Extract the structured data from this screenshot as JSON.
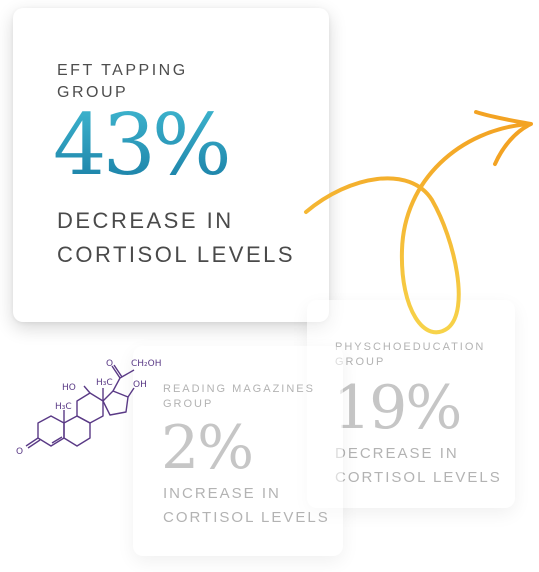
{
  "main_card": {
    "group": "EFT TAPPING GROUP",
    "value": "43%",
    "desc_line1": "DECREASE IN",
    "desc_line2": "CORTISOL LEVELS"
  },
  "psycho_card": {
    "group": "PHYSCHOEDUCATION GROUP",
    "value": "19%",
    "desc_line1": "DECREASE IN",
    "desc_line2": "CORTISOL LEVELS"
  },
  "reading_card": {
    "group": "READING MAGAZINES GROUP",
    "value": "2%",
    "desc_line1": "INCREASE IN",
    "desc_line2": "CORTISOL LEVELS"
  },
  "molecule": {
    "labels": [
      "O",
      "CH₂OH",
      "HO",
      "H₃C",
      "OH",
      "H₃C",
      "O"
    ]
  },
  "colors": {
    "accent_gradient_top": "#3fb6cf",
    "accent_gradient_bottom": "#1a7fa6",
    "arrow_orange": "#f3a323",
    "arrow_yellow": "#f7d34a",
    "molecule_purple": "#5a3a86"
  },
  "icons": [
    "curved-arrow-icon",
    "cortisol-molecule-icon"
  ]
}
